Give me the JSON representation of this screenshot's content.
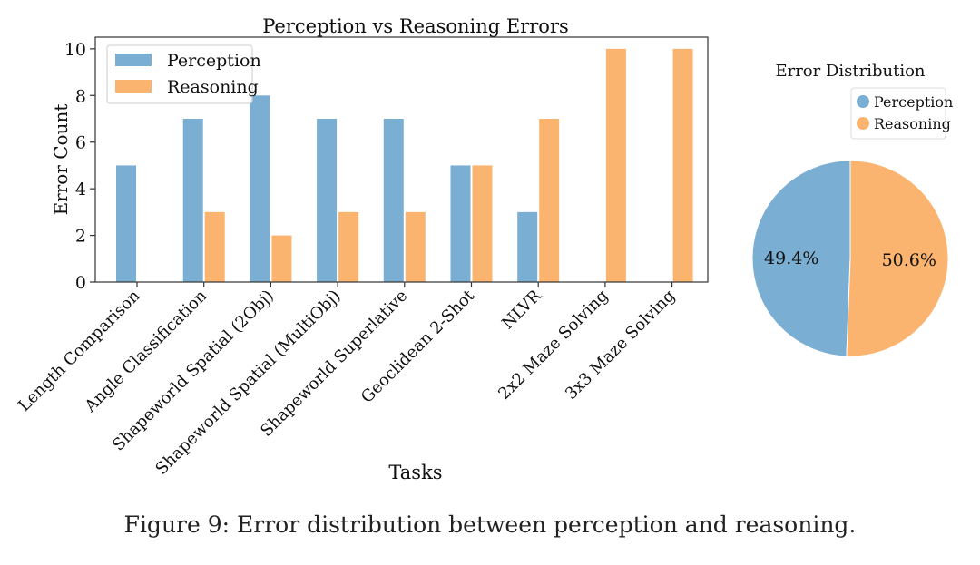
{
  "caption": "Figure 9: Error distribution between perception and reasoning.",
  "colors": {
    "perception": "#7aaed3",
    "reasoning": "#fbb46f"
  },
  "chart_data": [
    {
      "type": "bar",
      "title": "Perception vs Reasoning Errors",
      "xlabel": "Tasks",
      "ylabel": "Error Count",
      "ylim": [
        0,
        10.5
      ],
      "yticks": [
        0,
        2,
        4,
        6,
        8,
        10
      ],
      "legend": "top-left",
      "grid": false,
      "categories": [
        "Length Comparison",
        "Angle Classification",
        "Shapeworld Spatial (2Obj)",
        "Shapeworld Spatial (MultiObj)",
        "Shapeworld Superlative",
        "Geoclidean 2-Shot",
        "NLVR",
        "2x2 Maze Solving",
        "3x3 Maze Solving"
      ],
      "series": [
        {
          "name": "Perception",
          "values": [
            5,
            7,
            8,
            7,
            7,
            5,
            3,
            0,
            0
          ]
        },
        {
          "name": "Reasoning",
          "values": [
            0,
            3,
            2,
            3,
            3,
            5,
            7,
            10,
            10
          ]
        }
      ]
    },
    {
      "type": "pie",
      "title": "Error Distribution",
      "legend": "top",
      "labels": [
        "Perception",
        "Reasoning"
      ],
      "values": [
        49.4,
        50.6
      ],
      "value_labels": [
        "49.4%",
        "50.6%"
      ]
    }
  ]
}
